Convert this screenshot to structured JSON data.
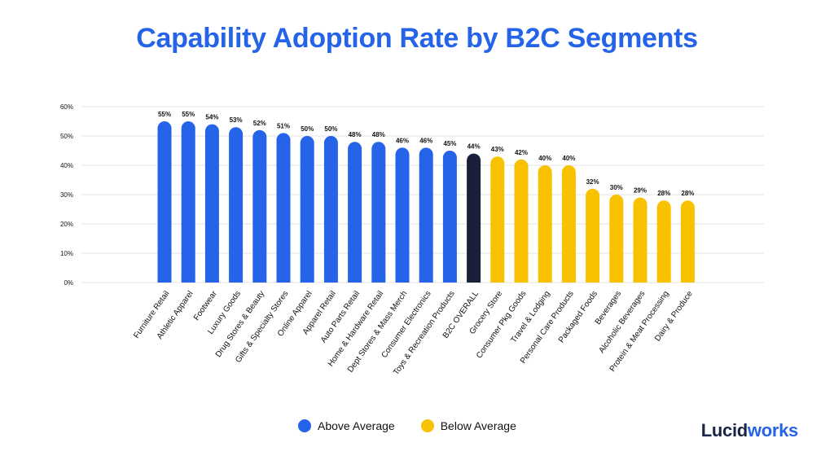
{
  "title": "Capability Adoption Rate by B2C Segments",
  "legend": [
    {
      "label": "Above Average",
      "color": "#2563e8"
    },
    {
      "label": "Below Average",
      "color": "#f8c200"
    }
  ],
  "logo": {
    "part1": "Lucid",
    "part2": "works"
  },
  "colors": {
    "above": "#2563e8",
    "overall": "#1a1f3a",
    "below": "#f8c200",
    "grid": "#e3e3e3",
    "text": "#111111"
  },
  "chart_data": {
    "type": "bar",
    "title": "Capability Adoption Rate by B2C Segments",
    "xlabel": "",
    "ylabel": "",
    "ylim": [
      0,
      60
    ],
    "yticks": [
      0,
      10,
      20,
      30,
      40,
      50,
      60
    ],
    "ytick_labels": [
      "0%",
      "10%",
      "20%",
      "30%",
      "40%",
      "50%",
      "60%"
    ],
    "grid": true,
    "categories": [
      "Furniture Retail",
      "Athletic Apparel",
      "Footwear",
      "Luxury Goods",
      "Drug Stores & Beauty",
      "Gifts & Specialty Stores",
      "Online Apparel",
      "Apparel Retail",
      "Auto Parts Retail",
      "Home & Hardware Retail",
      "Dept Stores & Mass Merch",
      "Consumer Electronics",
      "Toys & Recreation Products",
      "B2C OVERALL",
      "Grocery Store",
      "Consumer Pkg Goods",
      "Travel & Lodging",
      "Personal Care Products",
      "Packaged Foods",
      "Beverages",
      "Alcoholic Beverages",
      "Protein & Meat Processing",
      "Dairy & Produce"
    ],
    "values": [
      55,
      55,
      54,
      53,
      52,
      51,
      50,
      50,
      48,
      48,
      46,
      46,
      45,
      44,
      43,
      42,
      40,
      40,
      32,
      30,
      29,
      28,
      28
    ],
    "value_labels": [
      "55%",
      "55%",
      "54%",
      "53%",
      "52%",
      "51%",
      "50%",
      "50%",
      "48%",
      "48%",
      "46%",
      "46%",
      "45%",
      "44%",
      "43%",
      "42%",
      "40%",
      "40%",
      "32%",
      "30%",
      "29%",
      "28%",
      "28%"
    ],
    "groups": [
      "above",
      "above",
      "above",
      "above",
      "above",
      "above",
      "above",
      "above",
      "above",
      "above",
      "above",
      "above",
      "above",
      "overall",
      "below",
      "below",
      "below",
      "below",
      "below",
      "below",
      "below",
      "below",
      "below"
    ]
  }
}
